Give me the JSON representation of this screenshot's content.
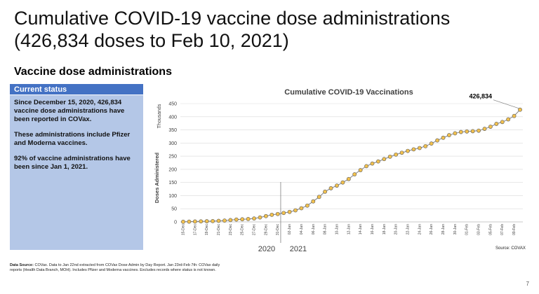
{
  "title": {
    "line1": "Cumulative COVID-19 vaccine dose administrations",
    "line2": "(426,834 doses to Feb 10, 2021)"
  },
  "section_heading": "Vaccine dose administrations",
  "status_box": {
    "header": "Current status",
    "paragraphs": [
      "Since December 15, 2020, 426,834 vaccine dose administrations have been reported in COVax.",
      "These administrations include Pfizer and Moderna vaccines.",
      "92% of vaccine administrations have been since Jan 1, 2021."
    ],
    "header_color": "#4472c4",
    "body_color": "#b4c7e7"
  },
  "footnote": {
    "label": "Data Source:",
    "text": " COVax. Data to Jan 22nd extracted from COVax Dose Admin by Day Report. Jan 23rd-Feb 7th: COVax daily reports (Health Data Branch, MOH). Includes Pfizer and Moderna vaccines. Excludes records where status is not known."
  },
  "source_text": "Source: COVAX",
  "page_number": "7",
  "chart_data": {
    "type": "line",
    "title": "Cumulative COVID-19 Vaccinations",
    "ylabel": "Doses Administered",
    "yunit": "Thousands",
    "xlabel": "",
    "ylim": [
      0,
      450
    ],
    "yticks": [
      0,
      50,
      100,
      150,
      200,
      250,
      300,
      350,
      400,
      450
    ],
    "grid": true,
    "marker_color": "#f2c14e",
    "line_color": "#7f7f7f",
    "year_labels": [
      "2020",
      "2021"
    ],
    "x": [
      "15-Dec",
      "16-Dec",
      "17-Dec",
      "18-Dec",
      "19-Dec",
      "20-Dec",
      "21-Dec",
      "22-Dec",
      "23-Dec",
      "24-Dec",
      "25-Dec",
      "26-Dec",
      "27-Dec",
      "28-Dec",
      "29-Dec",
      "30-Dec",
      "31-Dec",
      "01-Jan",
      "02-Jan",
      "03-Jan",
      "04-Jan",
      "05-Jan",
      "06-Jan",
      "07-Jan",
      "08-Jan",
      "09-Jan",
      "10-Jan",
      "11-Jan",
      "12-Jan",
      "13-Jan",
      "14-Jan",
      "15-Jan",
      "16-Jan",
      "17-Jan",
      "18-Jan",
      "19-Jan",
      "20-Jan",
      "21-Jan",
      "22-Jan",
      "23-Jan",
      "24-Jan",
      "25-Jan",
      "26-Jan",
      "27-Jan",
      "28-Jan",
      "29-Jan",
      "30-Jan",
      "31-Jan",
      "01-Feb",
      "02-Feb",
      "03-Feb",
      "04-Feb",
      "05-Feb",
      "06-Feb",
      "07-Feb",
      "08-Feb",
      "09-Feb",
      "10-Feb"
    ],
    "xtick_labels": [
      "15-Dec",
      "17-Dec",
      "19-Dec",
      "21-Dec",
      "23-Dec",
      "25-Dec",
      "27-Dec",
      "29-Dec",
      "31-Dec",
      "02-Jan",
      "04-Jan",
      "06-Jan",
      "08-Jan",
      "10-Jan",
      "12-Jan",
      "14-Jan",
      "16-Jan",
      "18-Jan",
      "20-Jan",
      "22-Jan",
      "24-Jan",
      "26-Jan",
      "28-Jan",
      "30-Jan",
      "01-Feb",
      "03-Feb",
      "05-Feb",
      "07-Feb",
      "09-Feb"
    ],
    "values": [
      0.5,
      1,
      1.5,
      2,
      2.5,
      3,
      4,
      5,
      7,
      9,
      10,
      11,
      13,
      17,
      22,
      27,
      30,
      34,
      38,
      44,
      52,
      62,
      78,
      95,
      115,
      128,
      138,
      150,
      163,
      181,
      197,
      212,
      222,
      230,
      239,
      248,
      256,
      263,
      270,
      276,
      281,
      288,
      298,
      310,
      320,
      330,
      337,
      342,
      344,
      345,
      347,
      354,
      362,
      373,
      380,
      390,
      403,
      426.834
    ],
    "annotation": {
      "label": "426,834",
      "index": 57
    },
    "separator_index": 16.5
  }
}
